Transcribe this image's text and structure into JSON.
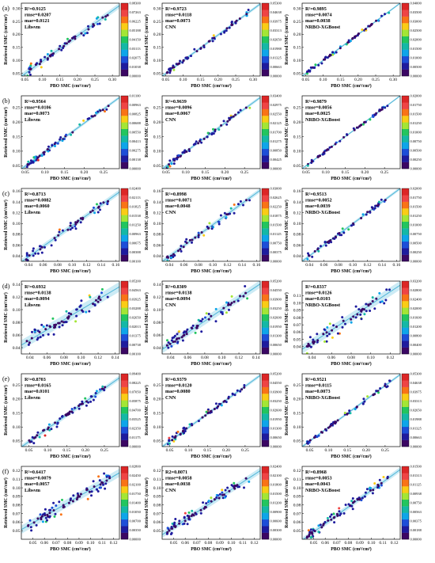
{
  "figure": {
    "ylabel": "Retrieved SMC (cm³/cm³)",
    "xlabel": "PBO SMC (cm³/cm³)",
    "row_labels": [
      "(a)",
      "(b)",
      "(c)",
      "(d)",
      "(e)",
      "(f)"
    ]
  },
  "colors": {
    "fit_line": "#4fb6d8",
    "band": "#bfe6f2",
    "colorbar": [
      "#3b0764",
      "#1e1b9e",
      "#1d4ed8",
      "#0ea5e9",
      "#14b8a6",
      "#22c55e",
      "#a3e635",
      "#facc15",
      "#f97316",
      "#ef4444",
      "#dc2626"
    ]
  },
  "chart_data": [
    {
      "type": "scatter",
      "row": 0,
      "col": 0,
      "stats": [
        "R²=0.9125",
        "rmse=0.0207",
        "mae=0.0121",
        "Libsvm"
      ],
      "xlim": [
        0.04,
        0.32
      ],
      "ylim": [
        0.04,
        0.32
      ],
      "xticks": [
        "0.05",
        "0.10",
        "0.15",
        "0.20",
        "0.25",
        "0.30"
      ],
      "xtick_vals": [
        0.05,
        0.1,
        0.15,
        0.2,
        0.25,
        0.3
      ],
      "yticks": [
        "0.05",
        "0.10",
        "0.15",
        "0.20",
        "0.25",
        "0.30"
      ],
      "ytick_vals": [
        0.05,
        0.1,
        0.15,
        0.2,
        0.25,
        0.3
      ],
      "fit": [
        0.0,
        0.97
      ],
      "colorbar": [
        "0.08300",
        "0.07263",
        "0.06225",
        "0.05188",
        "0.04150",
        "0.03113",
        "0.02075",
        "0.01038",
        "0.00000"
      ],
      "n": 60,
      "noise": 0.018,
      "seed": 11
    },
    {
      "type": "scatter",
      "row": 0,
      "col": 1,
      "stats": [
        "R²=0.9723",
        "rmse=0.0118",
        "mae=0.0073",
        "CNN"
      ],
      "xlim": [
        0.04,
        0.32
      ],
      "ylim": [
        0.04,
        0.32
      ],
      "xticks": [
        "0.05",
        "0.10",
        "0.15",
        "0.20",
        "0.25",
        "0.30"
      ],
      "xtick_vals": [
        0.05,
        0.1,
        0.15,
        0.2,
        0.25,
        0.3
      ],
      "yticks": [
        "0.05",
        "0.10",
        "0.15",
        "0.20",
        "0.25",
        "0.30"
      ],
      "ytick_vals": [
        0.05,
        0.1,
        0.15,
        0.2,
        0.25,
        0.3
      ],
      "fit": [
        0.0,
        0.99
      ],
      "colorbar": [
        "0.05300",
        "0.04638",
        "0.03975",
        "0.03313",
        "0.02650",
        "0.01988",
        "0.01325",
        "0.00663",
        "0.00000"
      ],
      "n": 60,
      "noise": 0.01,
      "seed": 12
    },
    {
      "type": "scatter",
      "row": 0,
      "col": 2,
      "stats": [
        "R²=0.9895",
        "rmse=0.0074",
        "mae=0.0038",
        "NRBO-XGBoost"
      ],
      "xlim": [
        0.04,
        0.32
      ],
      "ylim": [
        0.04,
        0.32
      ],
      "xticks": [
        "0.05",
        "0.10",
        "0.15",
        "0.20",
        "0.25",
        "0.30"
      ],
      "xtick_vals": [
        0.05,
        0.1,
        0.15,
        0.2,
        0.25,
        0.3
      ],
      "yticks": [
        "0.05",
        "0.10",
        "0.15",
        "0.20",
        "0.25",
        "0.30"
      ],
      "ytick_vals": [
        0.05,
        0.1,
        0.15,
        0.2,
        0.25,
        0.3
      ],
      "fit": [
        0.0,
        1.0
      ],
      "colorbar": [
        "0.04000",
        "0.03500",
        "0.03000",
        "0.02500",
        "0.02000",
        "0.01500",
        "0.01000",
        "0.00500",
        "0.00000"
      ],
      "n": 60,
      "noise": 0.006,
      "seed": 13
    },
    {
      "type": "scatter",
      "row": 1,
      "col": 0,
      "stats": [
        "R²=0.9564",
        "rmse=0.0106",
        "mae=0.0073",
        "Libsvm"
      ],
      "xlim": [
        0.04,
        0.29
      ],
      "ylim": [
        0.04,
        0.29
      ],
      "xticks": [
        "0.05",
        "0.10",
        "0.15",
        "0.20",
        "0.25"
      ],
      "xtick_vals": [
        0.05,
        0.1,
        0.15,
        0.2,
        0.25
      ],
      "yticks": [
        "0.05",
        "0.10",
        "0.15",
        "0.20",
        "0.25"
      ],
      "ytick_vals": [
        0.05,
        0.1,
        0.15,
        0.2,
        0.25
      ],
      "fit": [
        0.0,
        0.98
      ],
      "colorbar": [
        "0.01100",
        "0.00963",
        "0.00825",
        "0.00688",
        "0.00550",
        "0.00413",
        "0.00275",
        "0.00138",
        "0.00000"
      ],
      "n": 60,
      "noise": 0.009,
      "seed": 21
    },
    {
      "type": "scatter",
      "row": 1,
      "col": 1,
      "stats": [
        "R²=0.9639",
        "rmse=0.0096",
        "mae=0.0067",
        "CNN"
      ],
      "xlim": [
        0.04,
        0.29
      ],
      "ylim": [
        0.04,
        0.29
      ],
      "xticks": [
        "0.05",
        "0.10",
        "0.15",
        "0.20",
        "0.25"
      ],
      "xtick_vals": [
        0.05,
        0.1,
        0.15,
        0.2,
        0.25
      ],
      "yticks": [
        "0.05",
        "0.10",
        "0.15",
        "0.20",
        "0.25"
      ],
      "ytick_vals": [
        0.05,
        0.1,
        0.15,
        0.2,
        0.25
      ],
      "fit": [
        0.0,
        0.98
      ],
      "colorbar": [
        "0.03400",
        "0.02975",
        "0.02550",
        "0.02125",
        "0.01700",
        "0.01275",
        "0.00850",
        "0.00425",
        "0.00000"
      ],
      "n": 60,
      "noise": 0.009,
      "seed": 22
    },
    {
      "type": "scatter",
      "row": 1,
      "col": 2,
      "stats": [
        "R²=0.9879",
        "rmse=0.0056",
        "mae=0.0025",
        "NRBO-XGBoost"
      ],
      "xlim": [
        0.04,
        0.29
      ],
      "ylim": [
        0.04,
        0.29
      ],
      "xticks": [
        "0.05",
        "0.10",
        "0.15",
        "0.20",
        "0.25"
      ],
      "xtick_vals": [
        0.05,
        0.1,
        0.15,
        0.2,
        0.25
      ],
      "yticks": [
        "0.05",
        "0.10",
        "0.15",
        "0.20",
        "0.25"
      ],
      "ytick_vals": [
        0.05,
        0.1,
        0.15,
        0.2,
        0.25
      ],
      "fit": [
        0.0,
        1.0
      ],
      "colorbar": [
        "0.02000",
        "0.01750",
        "0.01500",
        "0.01250",
        "0.01000",
        "0.00750",
        "0.00500",
        "0.00250",
        "0.00000"
      ],
      "n": 60,
      "noise": 0.005,
      "seed": 23
    },
    {
      "type": "scatter",
      "row": 2,
      "col": 0,
      "stats": [
        "R²=0.8713",
        "rmse=0.0082",
        "mae=0.0060",
        "Libsvm"
      ],
      "xlim": [
        0.03,
        0.165
      ],
      "ylim": [
        0.03,
        0.165
      ],
      "xticks": [
        "0.04",
        "0.06",
        "0.08",
        "0.10",
        "0.12",
        "0.14",
        "0.16"
      ],
      "xtick_vals": [
        0.04,
        0.06,
        0.08,
        0.1,
        0.12,
        0.14,
        0.16
      ],
      "yticks": [
        "0.04",
        "0.06",
        "0.08",
        "0.10",
        "0.12",
        "0.14",
        "0.16"
      ],
      "ytick_vals": [
        0.04,
        0.06,
        0.08,
        0.1,
        0.12,
        0.14,
        0.16
      ],
      "fit": [
        0.0,
        0.96
      ],
      "colorbar": [
        "0.02400",
        "0.02113",
        "0.01825",
        "0.01538",
        "0.01250",
        "0.00963",
        "0.00675",
        "0.00388",
        "0.00100"
      ],
      "n": 55,
      "noise": 0.008,
      "seed": 31
    },
    {
      "type": "scatter",
      "row": 2,
      "col": 1,
      "stats": [
        "R²=0.8998",
        "rmse=0.0071",
        "mae=0.0048",
        "CNN"
      ],
      "xlim": [
        0.03,
        0.165
      ],
      "ylim": [
        0.03,
        0.165
      ],
      "xticks": [
        "0.04",
        "0.06",
        "0.08",
        "0.10",
        "0.12",
        "0.14",
        "0.16"
      ],
      "xtick_vals": [
        0.04,
        0.06,
        0.08,
        0.1,
        0.12,
        0.14,
        0.16
      ],
      "yticks": [
        "0.04",
        "0.06",
        "0.08",
        "0.10",
        "0.12",
        "0.14",
        "0.16"
      ],
      "ytick_vals": [
        0.04,
        0.06,
        0.08,
        0.1,
        0.12,
        0.14,
        0.16
      ],
      "fit": [
        0.0,
        0.98
      ],
      "colorbar": [
        "0.03000",
        "0.02625",
        "0.02250",
        "0.01875",
        "0.01500",
        "0.01125",
        "0.00750",
        "0.00375",
        "0.00000"
      ],
      "n": 55,
      "noise": 0.007,
      "seed": 32
    },
    {
      "type": "scatter",
      "row": 2,
      "col": 2,
      "stats": [
        "R²=0.9513",
        "rmse=0.0052",
        "mae=0.0039",
        "NRBO-XGBoost"
      ],
      "xlim": [
        0.03,
        0.165
      ],
      "ylim": [
        0.03,
        0.165
      ],
      "xticks": [
        "0.04",
        "0.06",
        "0.08",
        "0.10",
        "0.12",
        "0.14",
        "0.16"
      ],
      "xtick_vals": [
        0.04,
        0.06,
        0.08,
        0.1,
        0.12,
        0.14,
        0.16
      ],
      "yticks": [
        "0.04",
        "0.06",
        "0.08",
        "0.10",
        "0.12",
        "0.14",
        "0.16"
      ],
      "ytick_vals": [
        0.04,
        0.06,
        0.08,
        0.1,
        0.12,
        0.14,
        0.16
      ],
      "fit": [
        0.0,
        1.0
      ],
      "colorbar": [
        "0.02000",
        "0.01750",
        "0.01500",
        "0.01250",
        "0.01000",
        "0.00750",
        "0.00500",
        "0.00250",
        "0.00000"
      ],
      "n": 55,
      "noise": 0.005,
      "seed": 33
    },
    {
      "type": "scatter",
      "row": 3,
      "col": 0,
      "stats": [
        "R²=0.6932",
        "rmse=0.0138",
        "mae=0.0094",
        "Libsvm"
      ],
      "xlim": [
        0.03,
        0.145
      ],
      "ylim": [
        0.03,
        0.145
      ],
      "xticks": [
        "0.04",
        "0.06",
        "0.08",
        "0.10",
        "0.12",
        "0.14"
      ],
      "xtick_vals": [
        0.04,
        0.06,
        0.08,
        0.1,
        0.12,
        0.14
      ],
      "yticks": [
        "0.04",
        "0.06",
        "0.08",
        "0.10",
        "0.12",
        "0.14"
      ],
      "ytick_vals": [
        0.04,
        0.06,
        0.08,
        0.1,
        0.12,
        0.14
      ],
      "fit": [
        0.02,
        0.8
      ],
      "colorbar": [
        "0.05200",
        "0.04563",
        "0.03925",
        "0.03288",
        "0.02650",
        "0.02013",
        "0.01375",
        "0.00738",
        "0.00100"
      ],
      "n": 70,
      "noise": 0.013,
      "seed": 41
    },
    {
      "type": "scatter",
      "row": 3,
      "col": 1,
      "stats": [
        "R²=0.8309",
        "rmse=0.0138",
        "mae=0.0094",
        "CNN"
      ],
      "xlim": [
        0.03,
        0.145
      ],
      "ylim": [
        0.03,
        0.145
      ],
      "xticks": [
        "0.04",
        "0.06",
        "0.08",
        "0.10",
        "0.12",
        "0.14"
      ],
      "xtick_vals": [
        0.04,
        0.06,
        0.08,
        0.1,
        0.12,
        0.14
      ],
      "yticks": [
        "0.04",
        "0.06",
        "0.08",
        "0.10",
        "0.12",
        "0.14"
      ],
      "ytick_vals": [
        0.04,
        0.06,
        0.08,
        0.1,
        0.12,
        0.14
      ],
      "fit": [
        0.01,
        0.9
      ],
      "colorbar": [
        "0.05200",
        "0.04550",
        "0.03900",
        "0.03250",
        "0.02600",
        "0.01950",
        "0.01300",
        "0.00650",
        "0.00000"
      ],
      "n": 70,
      "noise": 0.01,
      "seed": 42
    },
    {
      "type": "scatter",
      "row": 3,
      "col": 2,
      "stats": [
        "R²=0.8337",
        "rmse=0.0126",
        "mae=0.0103",
        "NRBO-XGBoost"
      ],
      "xlim": [
        0.03,
        0.13
      ],
      "ylim": [
        0.03,
        0.13
      ],
      "xticks": [
        "0.04",
        "0.06",
        "0.08",
        "0.10",
        "0.12"
      ],
      "xtick_vals": [
        0.04,
        0.06,
        0.08,
        0.1,
        0.12
      ],
      "yticks": [
        "0.04",
        "0.05",
        "0.06",
        "0.07",
        "0.08",
        "0.09",
        "0.10",
        "0.11"
      ],
      "ytick_vals": [
        0.04,
        0.05,
        0.06,
        0.07,
        0.08,
        0.09,
        0.1,
        0.11
      ],
      "fit": [
        0.01,
        0.88
      ],
      "colorbar": [
        "0.03200",
        "0.02800",
        "0.02400",
        "0.02000",
        "0.01600",
        "0.01200",
        "0.00800",
        "0.00400",
        "0.00000"
      ],
      "n": 70,
      "noise": 0.01,
      "seed": 43
    },
    {
      "type": "scatter",
      "row": 4,
      "col": 0,
      "stats": [
        "R²=0.8703",
        "rmse=0.0165",
        "mae=0.0101",
        "Libsvm"
      ],
      "xlim": [
        0.03,
        0.29
      ],
      "ylim": [
        0.03,
        0.29
      ],
      "xticks": [
        "0.05",
        "0.10",
        "0.15",
        "0.20",
        "0.25"
      ],
      "xtick_vals": [
        0.05,
        0.1,
        0.15,
        0.2,
        0.25
      ],
      "yticks": [
        "0.05",
        "0.10",
        "0.15",
        "0.20",
        "0.25"
      ],
      "ytick_vals": [
        0.05,
        0.1,
        0.15,
        0.2,
        0.25
      ],
      "fit": [
        0.0,
        0.95
      ],
      "colorbar": [
        "0.09400",
        "0.08225",
        "0.07050",
        "0.05875",
        "0.04700",
        "0.03525",
        "0.02350",
        "0.01175",
        "0.00000"
      ],
      "n": 60,
      "noise": 0.014,
      "seed": 51
    },
    {
      "type": "scatter",
      "row": 4,
      "col": 1,
      "stats": [
        "R²=0.9379",
        "rmse=0.0120",
        "mae=0.0080",
        "CNN"
      ],
      "xlim": [
        0.03,
        0.29
      ],
      "ylim": [
        0.03,
        0.29
      ],
      "xticks": [
        "0.05",
        "0.10",
        "0.15",
        "0.20",
        "0.25"
      ],
      "xtick_vals": [
        0.05,
        0.1,
        0.15,
        0.2,
        0.25
      ],
      "yticks": [
        "0.05",
        "0.10",
        "0.15",
        "0.20",
        "0.25"
      ],
      "ytick_vals": [
        0.05,
        0.1,
        0.15,
        0.2,
        0.25
      ],
      "fit": [
        0.0,
        0.98
      ],
      "colorbar": [
        "0.05200",
        "0.04550",
        "0.03900",
        "0.03250",
        "0.02600",
        "0.01950",
        "0.01300",
        "0.00650",
        "0.00000"
      ],
      "n": 60,
      "noise": 0.01,
      "seed": 52
    },
    {
      "type": "scatter",
      "row": 4,
      "col": 2,
      "stats": [
        "R²=0.9521",
        "rmse=0.0115",
        "mae=0.0073",
        "NRBO-XGBoost"
      ],
      "xlim": [
        0.03,
        0.29
      ],
      "ylim": [
        0.03,
        0.29
      ],
      "xticks": [
        "0.05",
        "0.10",
        "0.15",
        "0.20",
        "0.25"
      ],
      "xtick_vals": [
        0.05,
        0.1,
        0.15,
        0.2,
        0.25
      ],
      "yticks": [
        "0.05",
        "0.10",
        "0.15",
        "0.20",
        "0.25"
      ],
      "ytick_vals": [
        0.05,
        0.1,
        0.15,
        0.2,
        0.25
      ],
      "fit": [
        0.0,
        0.99
      ],
      "colorbar": [
        "0.05300",
        "0.04638",
        "0.03975",
        "0.03313",
        "0.02650",
        "0.01988",
        "0.01325",
        "0.00663",
        "0.00000"
      ],
      "n": 60,
      "noise": 0.008,
      "seed": 53
    },
    {
      "type": "scatter",
      "row": 5,
      "col": 0,
      "stats": [
        "R²=0.6417",
        "rmse=0.0079",
        "mae=0.0057",
        "Libsvm"
      ],
      "xlim": [
        0.04,
        0.125
      ],
      "ylim": [
        0.04,
        0.125
      ],
      "xticks": [
        "0.05",
        "0.06",
        "0.07",
        "0.08",
        "0.09",
        "0.10",
        "0.11",
        "0.12"
      ],
      "xtick_vals": [
        0.05,
        0.06,
        0.07,
        0.08,
        0.09,
        0.1,
        0.11,
        0.12
      ],
      "yticks": [
        "0.05",
        "0.06",
        "0.07",
        "0.08",
        "0.09",
        "0.10",
        "0.11",
        "0.12"
      ],
      "ytick_vals": [
        0.05,
        0.06,
        0.07,
        0.08,
        0.09,
        0.1,
        0.11,
        0.12
      ],
      "fit": [
        0.02,
        0.78
      ],
      "colorbar": [
        "0.02800",
        "0.02450",
        "0.02100",
        "0.01750",
        "0.01400",
        "0.01050",
        "0.00700",
        "0.00350",
        "0.00000"
      ],
      "n": 80,
      "noise": 0.008,
      "seed": 61
    },
    {
      "type": "scatter",
      "row": 5,
      "col": 1,
      "stats": [
        "R2=0.8071",
        "rmse=0.0058",
        "mae=0.0038",
        "CNN"
      ],
      "xlim": [
        0.04,
        0.125
      ],
      "ylim": [
        0.04,
        0.125
      ],
      "xticks": [
        "0.05",
        "0.06",
        "0.07",
        "0.08",
        "0.09",
        "0.10",
        "0.11",
        "0.12"
      ],
      "xtick_vals": [
        0.05,
        0.06,
        0.07,
        0.08,
        0.09,
        0.1,
        0.11,
        0.12
      ],
      "yticks": [
        "0.05",
        "0.06",
        "0.07",
        "0.08",
        "0.09",
        "0.10",
        "0.11",
        "0.12"
      ],
      "ytick_vals": [
        0.05,
        0.06,
        0.07,
        0.08,
        0.09,
        0.1,
        0.11,
        0.12
      ],
      "fit": [
        0.01,
        0.88
      ],
      "colorbar": [
        "0.02400",
        "0.02100",
        "0.01800",
        "0.01500",
        "0.01200",
        "0.00900",
        "0.00600",
        "0.00300",
        "0.00000"
      ],
      "n": 80,
      "noise": 0.006,
      "seed": 62
    },
    {
      "type": "scatter",
      "row": 5,
      "col": 2,
      "stats": [
        "R²=0.8968",
        "rmse=0.0053",
        "mae=0.0043",
        "NRBO-XGBoost"
      ],
      "xlim": [
        0.04,
        0.125
      ],
      "ylim": [
        0.04,
        0.125
      ],
      "xticks": [
        "0.05",
        "0.06",
        "0.07",
        "0.08",
        "0.09",
        "0.10",
        "0.11",
        "0.12"
      ],
      "xtick_vals": [
        0.05,
        0.06,
        0.07,
        0.08,
        0.09,
        0.1,
        0.11,
        0.12
      ],
      "yticks": [
        "0.05",
        "0.06",
        "0.07",
        "0.08",
        "0.09",
        "0.10",
        "0.11",
        "0.12"
      ],
      "ytick_vals": [
        0.05,
        0.06,
        0.07,
        0.08,
        0.09,
        0.1,
        0.11,
        0.12
      ],
      "fit": [
        0.0,
        0.97
      ],
      "colorbar": [
        "0.01500",
        "0.01313",
        "0.01125",
        "0.00938",
        "0.00750",
        "0.00563",
        "0.00375",
        "0.00188",
        "0.00000"
      ],
      "n": 80,
      "noise": 0.005,
      "seed": 63
    }
  ]
}
